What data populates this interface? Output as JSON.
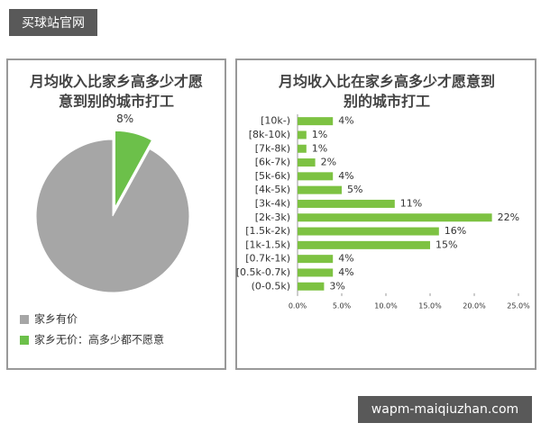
{
  "watermarks": {
    "top_left": "买球站官网",
    "bottom_right": "wapm-maiqiuzhan.com"
  },
  "chart_data": [
    {
      "type": "pie",
      "title": "月均收入比家乡高多少才愿意到别的城市打工",
      "categories": [
        "家乡有价",
        "家乡无价：高多少都不愿意"
      ],
      "values": [
        92,
        8
      ],
      "value_labels": [
        null,
        "8%"
      ],
      "colors": [
        "#a6a6a6",
        "#6cc04a"
      ],
      "legend": "bottom"
    },
    {
      "type": "hbar",
      "title": "月均收入比在家乡高多少才愿意到别的城市打工",
      "categories": [
        "[10k-)",
        "[8k-10k)",
        "[7k-8k)",
        "[6k-7k)",
        "[5k-6k)",
        "[4k-5k)",
        "[3k-4k)",
        "[2k-3k)",
        "[1.5k-2k)",
        "[1k-1.5k)",
        "[0.7k-1k)",
        "[0.5k-0.7k)",
        "(0-0.5k)"
      ],
      "values": [
        4,
        1,
        1,
        2,
        4,
        5,
        11,
        22,
        16,
        15,
        4,
        4,
        3
      ],
      "value_labels": [
        "4%",
        "1%",
        "1%",
        "2%",
        "4%",
        "5%",
        "11%",
        "22%",
        "16%",
        "15%",
        "4%",
        "4%",
        "3%"
      ],
      "color": "#7dc242",
      "xlim": [
        0,
        25
      ],
      "xticks": [
        {
          "value": 0,
          "label": "0.0%"
        },
        {
          "value": 5,
          "label": "5.0%"
        },
        {
          "value": 10,
          "label": "10.0%"
        },
        {
          "value": 15,
          "label": "15.0%"
        },
        {
          "value": 20,
          "label": "20.0%"
        },
        {
          "value": 25,
          "label": "25.0%"
        }
      ]
    }
  ]
}
